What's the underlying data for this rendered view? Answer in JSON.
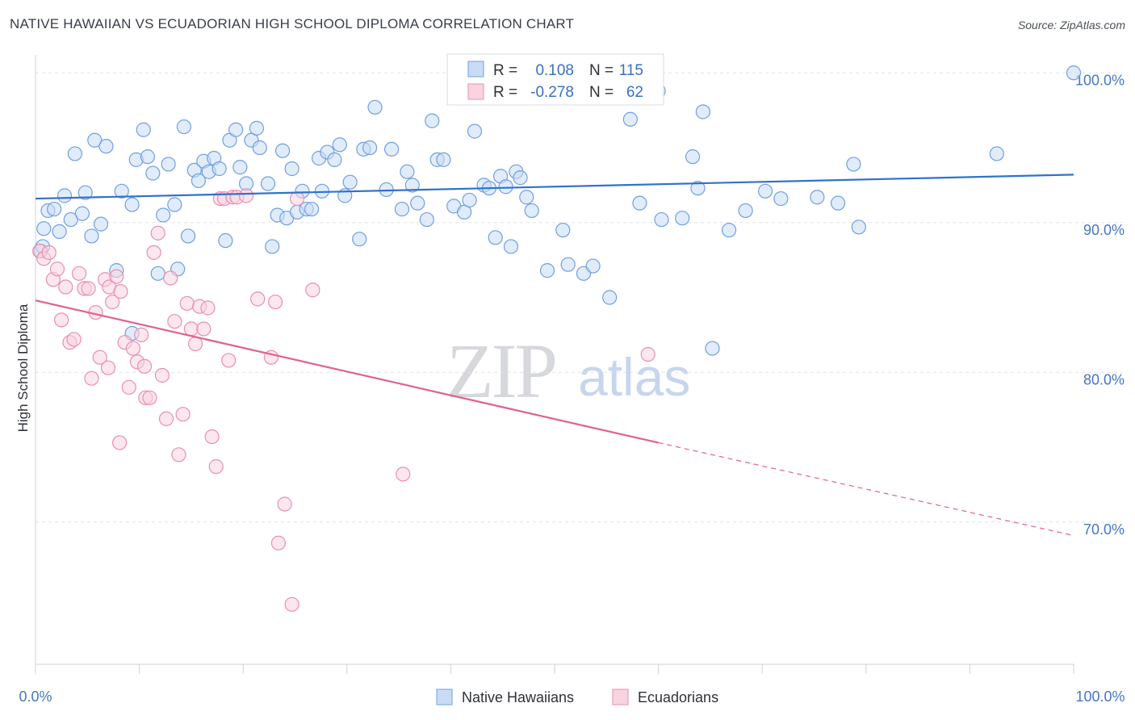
{
  "title": "NATIVE HAWAIIAN VS ECUADORIAN HIGH SCHOOL DIPLOMA CORRELATION CHART",
  "source": "Source: ZipAtlas.com",
  "watermark": {
    "zip": "ZIP",
    "atlas": "atlas"
  },
  "legend": {
    "rows": [
      {
        "r_label": "R =",
        "r_value": "0.108",
        "n_label": "N =",
        "n_value": "115"
      },
      {
        "r_label": "R =",
        "r_value": "-0.278",
        "n_label": "N =",
        "n_value": "62"
      }
    ]
  },
  "chart_data": {
    "type": "scatter",
    "xlabel": "",
    "ylabel": "High School Diploma",
    "xlim": [
      0,
      100
    ],
    "ylim": [
      60.5,
      101.2
    ],
    "x_tick_labels": {
      "left": "0.0%",
      "right": "100.0%"
    },
    "y_ticks": [
      {
        "value": 100,
        "label": "100.0%"
      },
      {
        "value": 90,
        "label": "90.0%"
      },
      {
        "value": 80,
        "label": "80.0%"
      },
      {
        "value": 70,
        "label": "70.0%"
      }
    ],
    "grid": true,
    "legend_position": "top-center",
    "series": [
      {
        "name": "Native Hawaiians",
        "color": "#6f9fe0",
        "fill": "#c9dcf5",
        "trend": {
          "x0": 0,
          "y0": 91.6,
          "x1": 100,
          "y1": 93.2
        },
        "points": [
          [
            0.5,
            88.1
          ],
          [
            0.8,
            89.6
          ],
          [
            1.2,
            90.8
          ],
          [
            1.8,
            90.9
          ],
          [
            2.3,
            89.4
          ],
          [
            2.8,
            91.8
          ],
          [
            3.4,
            90.2
          ],
          [
            3.8,
            94.6
          ],
          [
            4.5,
            90.6
          ],
          [
            4.8,
            92.0
          ],
          [
            5.4,
            89.1
          ],
          [
            5.7,
            95.5
          ],
          [
            6.3,
            89.9
          ],
          [
            6.8,
            95.1
          ],
          [
            7.8,
            86.8
          ],
          [
            8.3,
            92.1
          ],
          [
            9.3,
            91.2
          ],
          [
            9.7,
            94.2
          ],
          [
            10.4,
            96.2
          ],
          [
            10.8,
            94.4
          ],
          [
            11.3,
            93.3
          ],
          [
            11.8,
            86.6
          ],
          [
            12.3,
            90.5
          ],
          [
            12.8,
            93.9
          ],
          [
            13.4,
            91.2
          ],
          [
            13.7,
            86.9
          ],
          [
            14.3,
            96.4
          ],
          [
            14.7,
            89.1
          ],
          [
            15.3,
            93.5
          ],
          [
            15.7,
            92.8
          ],
          [
            16.2,
            94.1
          ],
          [
            16.7,
            93.4
          ],
          [
            17.2,
            94.3
          ],
          [
            17.7,
            93.6
          ],
          [
            18.3,
            88.8
          ],
          [
            18.7,
            95.5
          ],
          [
            19.3,
            96.2
          ],
          [
            19.7,
            93.7
          ],
          [
            20.3,
            92.6
          ],
          [
            20.8,
            95.5
          ],
          [
            21.3,
            96.3
          ],
          [
            21.6,
            95.0
          ],
          [
            22.4,
            92.6
          ],
          [
            22.8,
            88.4
          ],
          [
            23.3,
            90.5
          ],
          [
            23.8,
            94.8
          ],
          [
            24.2,
            90.3
          ],
          [
            24.7,
            93.6
          ],
          [
            25.2,
            90.7
          ],
          [
            25.7,
            92.1
          ],
          [
            26.1,
            90.9
          ],
          [
            26.6,
            90.9
          ],
          [
            27.3,
            94.3
          ],
          [
            27.6,
            92.1
          ],
          [
            28.1,
            94.7
          ],
          [
            28.8,
            94.2
          ],
          [
            29.3,
            95.2
          ],
          [
            29.8,
            91.8
          ],
          [
            30.3,
            92.7
          ],
          [
            31.2,
            88.9
          ],
          [
            31.6,
            94.9
          ],
          [
            32.2,
            95.0
          ],
          [
            32.7,
            97.7
          ],
          [
            33.8,
            92.2
          ],
          [
            34.3,
            94.9
          ],
          [
            35.3,
            90.9
          ],
          [
            35.8,
            93.4
          ],
          [
            36.3,
            92.5
          ],
          [
            36.8,
            91.3
          ],
          [
            37.7,
            90.2
          ],
          [
            38.2,
            96.8
          ],
          [
            38.7,
            94.2
          ],
          [
            39.3,
            94.2
          ],
          [
            40.3,
            91.1
          ],
          [
            41.3,
            90.7
          ],
          [
            41.8,
            91.5
          ],
          [
            42.3,
            96.1
          ],
          [
            43.2,
            92.5
          ],
          [
            43.7,
            92.3
          ],
          [
            44.3,
            89.0
          ],
          [
            44.8,
            93.1
          ],
          [
            45.3,
            92.4
          ],
          [
            45.8,
            88.4
          ],
          [
            46.3,
            93.4
          ],
          [
            46.7,
            93.0
          ],
          [
            47.3,
            91.7
          ],
          [
            47.8,
            90.8
          ],
          [
            49.3,
            86.8
          ],
          [
            50.8,
            89.5
          ],
          [
            51.3,
            87.2
          ],
          [
            52.8,
            86.6
          ],
          [
            53.7,
            87.1
          ],
          [
            55.3,
            85.0
          ],
          [
            57.3,
            96.9
          ],
          [
            58.2,
            91.3
          ],
          [
            59.3,
            100.0
          ],
          [
            60.0,
            98.8
          ],
          [
            60.3,
            90.2
          ],
          [
            62.3,
            90.3
          ],
          [
            63.3,
            94.4
          ],
          [
            63.8,
            92.3
          ],
          [
            64.3,
            97.4
          ],
          [
            65.2,
            81.6
          ],
          [
            66.8,
            89.5
          ],
          [
            68.4,
            90.8
          ],
          [
            70.3,
            92.1
          ],
          [
            71.8,
            91.6
          ],
          [
            75.3,
            91.7
          ],
          [
            77.3,
            91.3
          ],
          [
            78.8,
            93.9
          ],
          [
            79.3,
            89.7
          ],
          [
            92.6,
            94.6
          ],
          [
            100.0,
            100.0
          ],
          [
            0.7,
            88.4
          ],
          [
            9.3,
            82.6
          ]
        ]
      },
      {
        "name": "Ecuadorians",
        "color": "#e88fb0",
        "fill": "#f9d3e0",
        "trend": {
          "x0": 0,
          "y0": 84.8,
          "x1": 60,
          "y1": 75.3,
          "dash_to_x": 100,
          "dash_to_y": 69.1
        },
        "points": [
          [
            0.4,
            88.1
          ],
          [
            0.8,
            87.6
          ],
          [
            1.3,
            88.0
          ],
          [
            1.7,
            86.2
          ],
          [
            2.1,
            86.9
          ],
          [
            2.5,
            83.5
          ],
          [
            2.9,
            85.7
          ],
          [
            3.3,
            82.0
          ],
          [
            3.7,
            82.2
          ],
          [
            4.2,
            86.6
          ],
          [
            4.7,
            85.6
          ],
          [
            5.1,
            85.6
          ],
          [
            5.4,
            79.6
          ],
          [
            5.8,
            84.0
          ],
          [
            6.2,
            81.0
          ],
          [
            6.7,
            86.2
          ],
          [
            7.1,
            85.7
          ],
          [
            7.4,
            84.7
          ],
          [
            7.8,
            86.4
          ],
          [
            8.2,
            85.4
          ],
          [
            8.6,
            82.0
          ],
          [
            9.0,
            79.0
          ],
          [
            9.4,
            81.6
          ],
          [
            9.8,
            80.7
          ],
          [
            10.2,
            82.5
          ],
          [
            10.6,
            78.3
          ],
          [
            11.0,
            78.3
          ],
          [
            11.4,
            88.0
          ],
          [
            11.8,
            89.3
          ],
          [
            12.2,
            79.8
          ],
          [
            12.6,
            76.9
          ],
          [
            13.0,
            86.3
          ],
          [
            13.4,
            83.4
          ],
          [
            13.8,
            74.5
          ],
          [
            14.2,
            77.2
          ],
          [
            14.6,
            84.6
          ],
          [
            15.0,
            82.9
          ],
          [
            15.4,
            81.9
          ],
          [
            15.8,
            84.4
          ],
          [
            16.2,
            82.9
          ],
          [
            16.6,
            84.3
          ],
          [
            17.0,
            75.7
          ],
          [
            17.4,
            73.7
          ],
          [
            17.8,
            91.6
          ],
          [
            18.2,
            91.6
          ],
          [
            18.6,
            80.8
          ],
          [
            19.0,
            91.7
          ],
          [
            19.4,
            91.7
          ],
          [
            20.3,
            91.8
          ],
          [
            21.4,
            84.9
          ],
          [
            22.7,
            81.0
          ],
          [
            23.1,
            84.7
          ],
          [
            23.4,
            68.6
          ],
          [
            24.0,
            71.2
          ],
          [
            24.7,
            64.5
          ],
          [
            25.2,
            91.6
          ],
          [
            26.7,
            85.5
          ],
          [
            35.4,
            73.2
          ],
          [
            59.0,
            81.2
          ],
          [
            10.5,
            80.4
          ],
          [
            8.1,
            75.3
          ],
          [
            7.0,
            80.3
          ]
        ]
      }
    ]
  },
  "bottom_legend": [
    {
      "label": "Native Hawaiians"
    },
    {
      "label": "Ecuadorians"
    }
  ]
}
